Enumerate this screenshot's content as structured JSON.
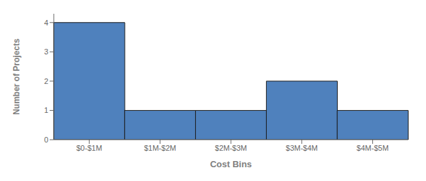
{
  "chart_data": {
    "type": "bar",
    "categories": [
      "$0-$1M",
      "$1M-$2M",
      "$2M-$3M",
      "$3M-$4M",
      "$4M-$5M"
    ],
    "values": [
      4,
      1,
      1,
      2,
      1
    ],
    "color": "#4F81BD",
    "xlabel": "Cost Bins",
    "ylabel": "Number of Projects",
    "ylim": [
      0,
      4.3
    ],
    "yticks": [
      0,
      1,
      2,
      3,
      4
    ],
    "grid": false
  }
}
